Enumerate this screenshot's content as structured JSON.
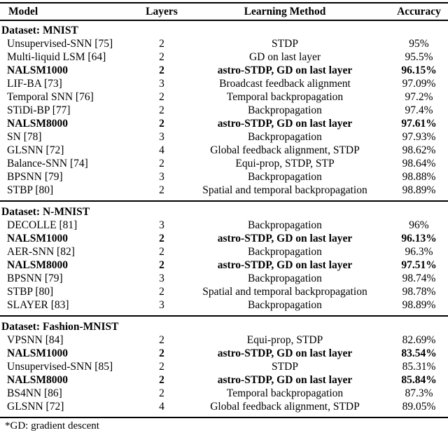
{
  "colors": {
    "background": "#ffffff",
    "text": "#000000",
    "rule": "#000000"
  },
  "table": {
    "headers": [
      "Model",
      "Layers",
      "Learning Method",
      "Accuracy"
    ],
    "sections": [
      {
        "title": "Dataset: MNIST",
        "rows": [
          {
            "model": "Unsupervised-SNN [75]",
            "layers": "2",
            "method": "STDP",
            "accuracy": "95%",
            "emphasis": false
          },
          {
            "model": "Multi-liquid LSM [64]",
            "layers": "2",
            "method": "GD on last layer",
            "accuracy": "95.5%",
            "emphasis": false
          },
          {
            "model": "NALSM1000",
            "layers": "2",
            "method": "astro-STDP, GD on last layer",
            "accuracy": "96.15%",
            "emphasis": true
          },
          {
            "model": "LIF-BA [73]",
            "layers": "3",
            "method": "Broadcast feedback alignment",
            "accuracy": "97.09%",
            "emphasis": false
          },
          {
            "model": "Temporal SNN [76]",
            "layers": "2",
            "method": "Temporal backpropagation",
            "accuracy": "97.2%",
            "emphasis": false
          },
          {
            "model": "STiDi-BP [77]",
            "layers": "2",
            "method": "Backpropagation",
            "accuracy": "97.4%",
            "emphasis": false
          },
          {
            "model": "NALSM8000",
            "layers": "2",
            "method": "astro-STDP, GD on last layer",
            "accuracy": "97.61%",
            "emphasis": true
          },
          {
            "model": "SN [78]",
            "layers": "3",
            "method": "Backpropagation",
            "accuracy": "97.93%",
            "emphasis": false
          },
          {
            "model": "GLSNN [72]",
            "layers": "4",
            "method": "Global feedback alignment, STDP",
            "accuracy": "98.62%",
            "emphasis": false
          },
          {
            "model": "Balance-SNN [74]",
            "layers": "2",
            "method": "Equi-prop, STDP, STP",
            "accuracy": "98.64%",
            "emphasis": false
          },
          {
            "model": "BPSNN [79]",
            "layers": "3",
            "method": "Backpropagation",
            "accuracy": "98.88%",
            "emphasis": false
          },
          {
            "model": "STBP [80]",
            "layers": "2",
            "method": "Spatial and temporal backpropagation",
            "accuracy": "98.89%",
            "emphasis": false
          }
        ]
      },
      {
        "title": "Dataset: N-MNIST",
        "rows": [
          {
            "model": "DECOLLE [81]",
            "layers": "3",
            "method": "Backpropagation",
            "accuracy": "96%",
            "emphasis": false
          },
          {
            "model": "NALSM1000",
            "layers": "2",
            "method": "astro-STDP, GD on last layer",
            "accuracy": "96.13%",
            "emphasis": true
          },
          {
            "model": "AER-SNN [82]",
            "layers": "2",
            "method": "Backpropagation",
            "accuracy": "96.3%",
            "emphasis": false
          },
          {
            "model": "NALSM8000",
            "layers": "2",
            "method": "astro-STDP, GD on last layer",
            "accuracy": "97.51%",
            "emphasis": true
          },
          {
            "model": "BPSNN [79]",
            "layers": "3",
            "method": "Backpropagation",
            "accuracy": "98.74%",
            "emphasis": false
          },
          {
            "model": "STBP [80]",
            "layers": "2",
            "method": "Spatial and temporal backpropagation",
            "accuracy": "98.78%",
            "emphasis": false
          },
          {
            "model": "SLAYER [83]",
            "layers": "3",
            "method": "Backpropagation",
            "accuracy": "98.89%",
            "emphasis": false
          }
        ]
      },
      {
        "title": "Dataset: Fashion-MNIST",
        "rows": [
          {
            "model": "VPSNN [84]",
            "layers": "2",
            "method": "Equi-prop, STDP",
            "accuracy": "82.69%",
            "emphasis": false
          },
          {
            "model": "NALSM1000",
            "layers": "2",
            "method": "astro-STDP, GD on last layer",
            "accuracy": "83.54%",
            "emphasis": true
          },
          {
            "model": "Unsupervised-SNN [85]",
            "layers": "2",
            "method": "STDP",
            "accuracy": "85.31%",
            "emphasis": false
          },
          {
            "model": "NALSM8000",
            "layers": "2",
            "method": "astro-STDP, GD on last layer",
            "accuracy": "85.84%",
            "emphasis": true
          },
          {
            "model": "BS4NN [86]",
            "layers": "2",
            "method": "Temporal backpropagation",
            "accuracy": "87.3%",
            "emphasis": false
          },
          {
            "model": "GLSNN [72]",
            "layers": "4",
            "method": "Global feedback alignment, STDP",
            "accuracy": "89.05%",
            "emphasis": false
          }
        ]
      }
    ],
    "footnote": "*GD: gradient descent"
  }
}
